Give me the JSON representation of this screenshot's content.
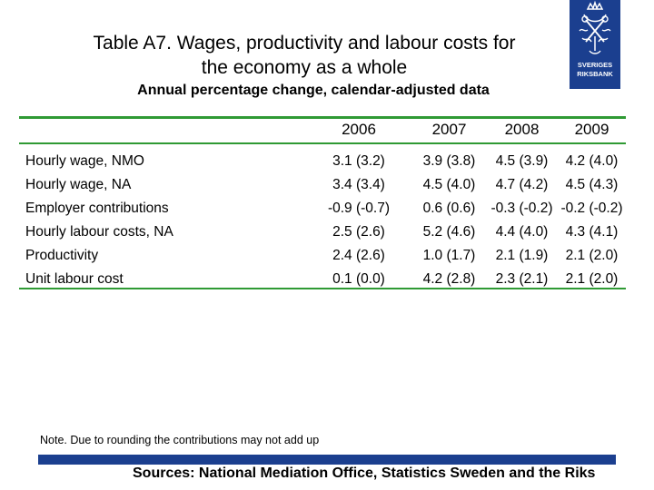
{
  "title": {
    "line1": "Table A7. Wages, productivity and labour costs for",
    "line2": "the economy as a whole"
  },
  "subtitle": "Annual percentage change, calendar-adjusted data",
  "logo": {
    "text_line1": "SVERIGES",
    "text_line2": "RIKSBANK",
    "color": "#1b3f8f"
  },
  "table": {
    "columns": [
      "",
      "2006",
      "2007",
      "2008",
      "2009"
    ],
    "rows": [
      {
        "label": "Hourly wage, NMO",
        "values": [
          "3.1 (3.2)",
          "3.9 (3.8)",
          "4.5 (3.9)",
          "4.2 (4.0)"
        ]
      },
      {
        "label": "Hourly wage, NA",
        "values": [
          "3.4 (3.4)",
          "4.5 (4.0)",
          "4.7 (4.2)",
          "4.5 (4.3)"
        ]
      },
      {
        "label": "Employer contributions",
        "values": [
          "-0.9 (-0.7)",
          "0.6 (0.6)",
          "-0.3 (-0.2)",
          "-0.2 (-0.2)"
        ]
      },
      {
        "label": "Hourly labour costs, NA",
        "values": [
          "2.5 (2.6)",
          "5.2 (4.6)",
          "4.4 (4.0)",
          "4.3 (4.1)"
        ]
      },
      {
        "label": "Productivity",
        "values": [
          "2.4 (2.6)",
          "1.0 (1.7)",
          "2.1 (1.9)",
          "2.1 (2.0)"
        ]
      },
      {
        "label": "Unit labour cost",
        "values": [
          "0.1 (0.0)",
          "4.2 (2.8)",
          "2.3 (2.1)",
          "2.1 (2.0)"
        ]
      }
    ]
  },
  "note": "Note. Due to rounding the contributions may not add up",
  "sources": "Sources: National Mediation Office, Statistics Sweden and the Riks",
  "colors": {
    "rule": "#2f9a34",
    "bar": "#1b3f8f"
  }
}
